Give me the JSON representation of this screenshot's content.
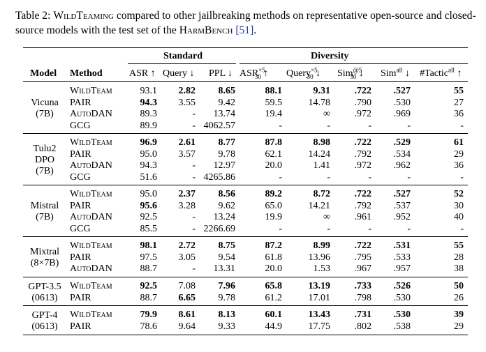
{
  "caption": {
    "prefix": "Table 2:",
    "wt_name": "WildTeaming",
    "text1": "compared to other jailbreaking methods on representative open-source and closed-source models with the test set of the",
    "benchmark": "HarmBench",
    "cite": "[51]",
    "end": "."
  },
  "header": {
    "group_standard": "Standard",
    "group_diversity": "Diversity",
    "col_model": "Model",
    "col_method": "Method",
    "asr": "ASR ↑",
    "query": "Query ↓",
    "ppl": "PPL ↓",
    "asr30": "ASR",
    "asr30_sup": "×5",
    "asr30_sub": "30",
    "asr30_arrow": "↑",
    "query30": "Query",
    "query30_sup": "×5",
    "query30_sub": "30",
    "query30_arrow": "↓",
    "sim30": "Sim",
    "sim30_sup": "@5",
    "sim30_sub": "30",
    "sim30_arrow": "↓",
    "simall": "Sim",
    "simall_sup": "all",
    "simall_arrow": "↓",
    "tactic": "#Tactic",
    "tactic_sup": "all",
    "tactic_arrow": "↑"
  },
  "groups": [
    {
      "model": [
        "Vicuna",
        "(7B)"
      ],
      "rows": [
        {
          "method": "WildTeam",
          "sc": true,
          "values": [
            "93.1",
            "2.82",
            "8.65",
            "88.1",
            "9.31",
            ".722",
            ".527",
            "55"
          ],
          "bold": [
            false,
            true,
            true,
            true,
            true,
            true,
            true,
            true
          ]
        },
        {
          "method": "PAIR",
          "sc": false,
          "values": [
            "94.3",
            "3.55",
            "9.42",
            "59.5",
            "14.78",
            ".790",
            ".530",
            "27"
          ],
          "bold": [
            true,
            false,
            false,
            false,
            false,
            false,
            false,
            false
          ]
        },
        {
          "method": "AutoDAN",
          "sc": true,
          "values": [
            "89.3",
            "-",
            "13.74",
            "19.4",
            "∞",
            ".972",
            ".969",
            "36"
          ],
          "bold": [
            false,
            false,
            false,
            false,
            false,
            false,
            false,
            false
          ]
        },
        {
          "method": "GCG",
          "sc": false,
          "values": [
            "89.9",
            "-",
            "4062.57",
            "-",
            "-",
            "-",
            "-",
            "-"
          ],
          "bold": [
            false,
            false,
            false,
            false,
            false,
            false,
            false,
            false
          ]
        }
      ]
    },
    {
      "model": [
        "Tulu2",
        "DPO",
        "(7B)"
      ],
      "rows": [
        {
          "method": "WildTeam",
          "sc": true,
          "values": [
            "96.9",
            "2.61",
            "8.77",
            "87.8",
            "8.98",
            ".722",
            ".529",
            "61"
          ],
          "bold": [
            true,
            true,
            true,
            true,
            true,
            true,
            true,
            true
          ]
        },
        {
          "method": "PAIR",
          "sc": false,
          "values": [
            "95.0",
            "3.57",
            "9.78",
            "62.1",
            "14.24",
            ".792",
            ".534",
            "29"
          ],
          "bold": [
            false,
            false,
            false,
            false,
            false,
            false,
            false,
            false
          ]
        },
        {
          "method": "AutoDAN",
          "sc": true,
          "values": [
            "94.3",
            "-",
            "12.97",
            "20.0",
            "1.41",
            ".972",
            ".962",
            "36"
          ],
          "bold": [
            false,
            false,
            false,
            false,
            false,
            false,
            false,
            false
          ]
        },
        {
          "method": "GCG",
          "sc": false,
          "values": [
            "51.6",
            "-",
            "4265.86",
            "-",
            "-",
            "-",
            "-",
            "-"
          ],
          "bold": [
            false,
            false,
            false,
            false,
            false,
            false,
            false,
            false
          ]
        }
      ]
    },
    {
      "model": [
        "Mistral",
        "(7B)"
      ],
      "rows": [
        {
          "method": "WildTeam",
          "sc": true,
          "values": [
            "95.0",
            "2.37",
            "8.56",
            "89.2",
            "8.72",
            ".722",
            ".527",
            "52"
          ],
          "bold": [
            false,
            true,
            true,
            true,
            true,
            true,
            true,
            true
          ]
        },
        {
          "method": "PAIR",
          "sc": false,
          "values": [
            "95.6",
            "3.28",
            "9.62",
            "65.0",
            "14.21",
            ".792",
            ".537",
            "30"
          ],
          "bold": [
            true,
            false,
            false,
            false,
            false,
            false,
            false,
            false
          ]
        },
        {
          "method": "AutoDAN",
          "sc": true,
          "values": [
            "92.5",
            "-",
            "13.24",
            "19.9",
            "∞",
            ".961",
            ".952",
            "40"
          ],
          "bold": [
            false,
            false,
            false,
            false,
            false,
            false,
            false,
            false
          ]
        },
        {
          "method": "GCG",
          "sc": false,
          "values": [
            "85.5",
            "-",
            "2266.69",
            "-",
            "-",
            "-",
            "-",
            "-"
          ],
          "bold": [
            false,
            false,
            false,
            false,
            false,
            false,
            false,
            false
          ]
        }
      ]
    },
    {
      "model": [
        "Mixtral",
        "(8×7B)"
      ],
      "rows": [
        {
          "method": "WildTeam",
          "sc": true,
          "values": [
            "98.1",
            "2.72",
            "8.75",
            "87.2",
            "8.99",
            ".722",
            ".531",
            "55"
          ],
          "bold": [
            true,
            true,
            true,
            true,
            true,
            true,
            true,
            true
          ]
        },
        {
          "method": "PAIR",
          "sc": false,
          "values": [
            "97.5",
            "3.05",
            "9.54",
            "61.8",
            "13.96",
            ".795",
            ".533",
            "28"
          ],
          "bold": [
            false,
            false,
            false,
            false,
            false,
            false,
            false,
            false
          ]
        },
        {
          "method": "AutoDAN",
          "sc": true,
          "values": [
            "88.7",
            "-",
            "13.31",
            "20.0",
            "1.53",
            ".967",
            ".957",
            "38"
          ],
          "bold": [
            false,
            false,
            false,
            false,
            false,
            false,
            false,
            false
          ]
        }
      ]
    },
    {
      "model": [
        "GPT-3.5",
        "(0613)"
      ],
      "rows": [
        {
          "method": "WildTeam",
          "sc": true,
          "values": [
            "92.5",
            "7.08",
            "7.96",
            "65.8",
            "13.19",
            ".733",
            ".526",
            "50"
          ],
          "bold": [
            true,
            false,
            true,
            true,
            true,
            true,
            true,
            true
          ]
        },
        {
          "method": "PAIR",
          "sc": false,
          "values": [
            "88.7",
            "6.65",
            "9.78",
            "61.2",
            "17.01",
            ".798",
            ".530",
            "26"
          ],
          "bold": [
            false,
            true,
            false,
            false,
            false,
            false,
            false,
            false
          ]
        }
      ]
    },
    {
      "model": [
        "GPT-4",
        "(0613)"
      ],
      "rows": [
        {
          "method": "WildTeam",
          "sc": true,
          "values": [
            "79.9",
            "8.61",
            "8.13",
            "60.1",
            "13.43",
            ".731",
            ".530",
            "39"
          ],
          "bold": [
            true,
            true,
            true,
            true,
            true,
            true,
            true,
            true
          ]
        },
        {
          "method": "PAIR",
          "sc": false,
          "values": [
            "78.6",
            "9.64",
            "9.33",
            "44.9",
            "17.75",
            ".802",
            ".538",
            "29"
          ],
          "bold": [
            false,
            false,
            false,
            false,
            false,
            false,
            false,
            false
          ]
        }
      ]
    }
  ]
}
